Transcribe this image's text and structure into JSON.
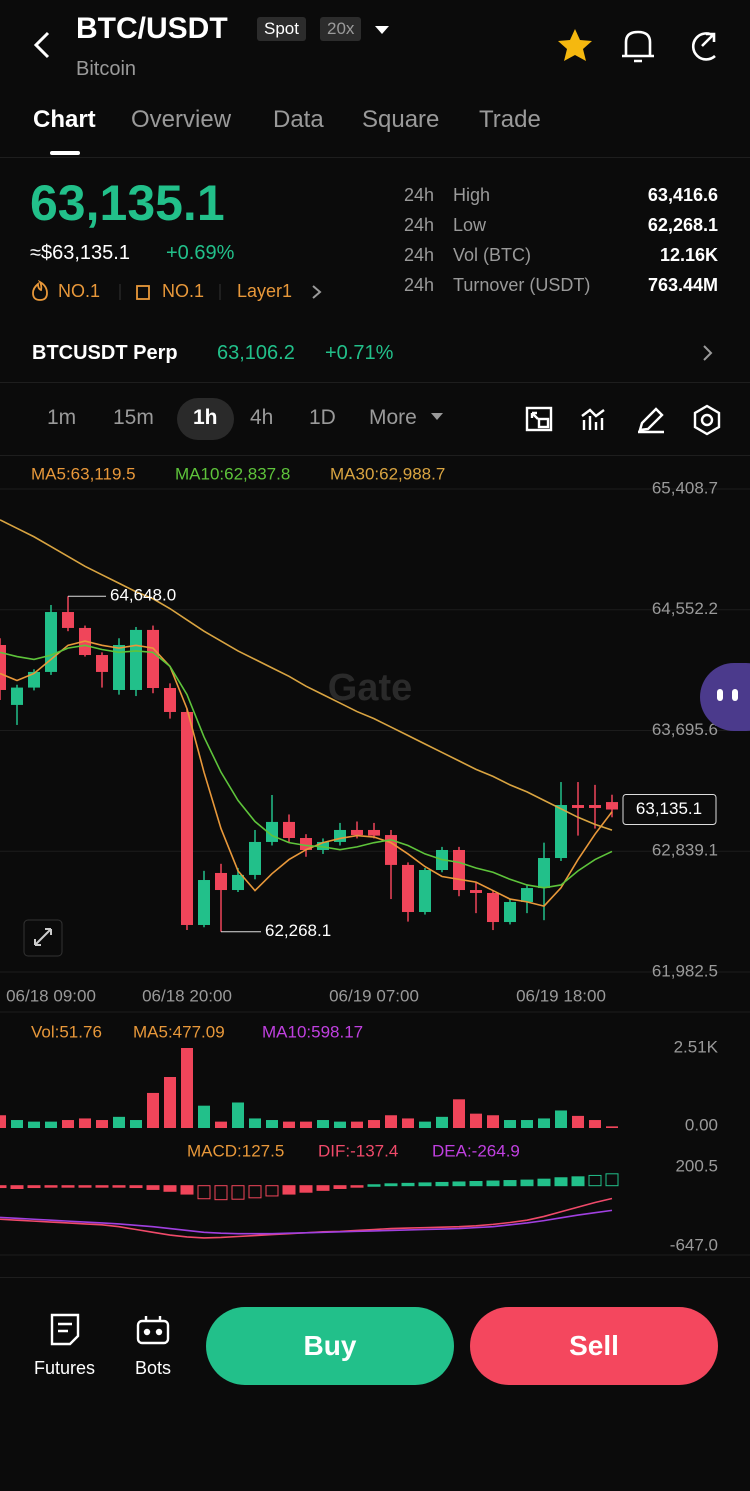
{
  "header": {
    "title": "BTC/USDT",
    "badges": [
      "Spot",
      "20x"
    ],
    "subtitle": "Bitcoin"
  },
  "tabs": [
    "Chart",
    "Overview",
    "Data",
    "Square",
    "Trade"
  ],
  "price": {
    "last": "63,135.1",
    "usd": "≈$63,135.1",
    "change": "+0.69%",
    "tags": [
      "NO.1",
      "NO.1",
      "Layer1"
    ]
  },
  "stats": [
    [
      "24h",
      "High",
      "63,416.6"
    ],
    [
      "24h",
      "Low",
      "62,268.1"
    ],
    [
      "24h",
      "Vol (BTC)",
      "12.16K"
    ],
    [
      "24h",
      "Turnover (USDT)",
      "763.44M"
    ]
  ],
  "perp": {
    "name": "BTCUSDT Perp",
    "price": "63,106.2",
    "change": "+0.71%"
  },
  "intervals": [
    "1m",
    "15m",
    "1h",
    "4h",
    "1D",
    "More"
  ],
  "watermark": "Gate",
  "chart_data": {
    "type": "candlestick",
    "legend": [
      "MA5:63,119.5",
      "MA10:62,837.8",
      "MA30:62,988.7"
    ],
    "ylim": [
      61982.5,
      65408.7
    ],
    "yticks": [
      {
        "value": 65408.7,
        "label": "65,408.7"
      },
      {
        "value": 64552.2,
        "label": "64,552.2"
      },
      {
        "value": 63695.6,
        "label": "63,695.6"
      },
      {
        "value": 62839.1,
        "label": "62,839.1"
      },
      {
        "value": 61982.5,
        "label": "61,982.5"
      }
    ],
    "categories": [
      null,
      null,
      null,
      "06/18 09:00",
      null,
      null,
      null,
      null,
      null,
      null,
      null,
      "06/18 20:00",
      null,
      null,
      null,
      null,
      null,
      null,
      null,
      null,
      null,
      null,
      "06/19 07:00",
      null,
      null,
      null,
      null,
      null,
      null,
      null,
      null,
      null,
      null,
      "06/19 18:00",
      null,
      null,
      null
    ],
    "open": [
      64302,
      63877,
      64000,
      64111,
      64536,
      64423,
      64231,
      63983,
      63983,
      64409,
      63997,
      63827,
      62316,
      62685,
      62564,
      62671,
      62905,
      63047,
      62933,
      62848,
      62905,
      62990,
      62990,
      62954,
      62742,
      62408,
      62706,
      62848,
      62564,
      62543,
      62337,
      62479,
      62578,
      62791,
      63167,
      63167,
      63188
    ],
    "high": [
      64350,
      64020,
      64130,
      64586,
      64648,
      64440,
      64250,
      64350,
      64430,
      64440,
      64030,
      63850,
      62700,
      62750,
      62720,
      62990,
      63238,
      63100,
      62960,
      62930,
      63040,
      63050,
      63040,
      62990,
      62760,
      62720,
      62870,
      62870,
      62620,
      62560,
      62500,
      62600,
      62900,
      63330,
      63330,
      63310,
      63240
    ],
    "low": [
      63912,
      63735,
      63980,
      64090,
      64400,
      64220,
      64000,
      63950,
      63940,
      63960,
      63780,
      62280,
      62300,
      62268.1,
      62550,
      62640,
      62880,
      62900,
      62800,
      62820,
      62880,
      62930,
      62930,
      62500,
      62340,
      62390,
      62690,
      62520,
      62400,
      62280,
      62320,
      62400,
      62350,
      62770,
      62950,
      63000,
      63080
    ],
    "close": [
      63983,
      64000,
      64111,
      64536,
      64423,
      64231,
      64111,
      64302,
      64409,
      63997,
      63827,
      62316,
      62635,
      62564,
      62671,
      62905,
      63047,
      62933,
      62848,
      62905,
      62990,
      62954,
      62950,
      62742,
      62408,
      62706,
      62848,
      62564,
      62543,
      62337,
      62479,
      62578,
      62791,
      63167,
      63146,
      63146,
      63135.1
    ],
    "series": [
      {
        "name": "MA5",
        "color": "#e8983a",
        "values": [
          64100,
          64050,
          64100,
          64200,
          64300,
          64330,
          64300,
          64280,
          64300,
          64280,
          64150,
          63850,
          63400,
          63000,
          62700,
          62560,
          62680,
          62780,
          62850,
          62900,
          62930,
          62950,
          62940,
          62900,
          62820,
          62730,
          62660,
          62640,
          62620,
          62560,
          62500,
          62480,
          62450,
          62580,
          62780,
          62960,
          63119.5
        ]
      },
      {
        "name": "MA10",
        "color": "#5ec43b",
        "values": [
          64250,
          64220,
          64200,
          64230,
          64280,
          64300,
          64270,
          64250,
          64260,
          64250,
          64150,
          63950,
          63650,
          63400,
          63200,
          63050,
          62950,
          62900,
          62880,
          62870,
          62850,
          62870,
          62900,
          62920,
          62880,
          62820,
          62780,
          62760,
          62720,
          62690,
          62640,
          62600,
          62580,
          62600,
          62700,
          62780,
          62837.8
        ]
      },
      {
        "name": "MA30",
        "color": "#d9a441",
        "values": [
          65190,
          65130,
          65070,
          65000,
          64930,
          64860,
          64800,
          64740,
          64680,
          64630,
          64560,
          64480,
          64400,
          64330,
          64260,
          64200,
          64140,
          64080,
          64010,
          63950,
          63890,
          63830,
          63780,
          63720,
          63660,
          63600,
          63540,
          63480,
          63420,
          63370,
          63310,
          63260,
          63200,
          63140,
          63080,
          63030,
          62988.7
        ]
      }
    ],
    "annotations": [
      {
        "label": "64,648.0",
        "value": 64648
      },
      {
        "label": "62,268.1",
        "value": 62268.1
      },
      {
        "label": "63,135.1",
        "value": 63135.1
      }
    ],
    "up_color": "#22c08a",
    "down_color": "#f0455a"
  },
  "volume": {
    "legend": [
      "Vol:51.76",
      "MA5:477.09",
      "MA10:598.17"
    ],
    "ylim": [
      0,
      2510
    ],
    "yticks": [
      {
        "value": 2510,
        "label": "2.51K"
      },
      {
        "value": 0,
        "label": "0.00"
      }
    ],
    "values": [
      400,
      250,
      200,
      200,
      250,
      300,
      250,
      350,
      250,
      1100,
      1600,
      2510,
      700,
      200,
      800,
      300,
      250,
      200,
      200,
      250,
      200,
      200,
      250,
      400,
      300,
      200,
      350,
      900,
      450,
      400,
      250,
      250,
      300,
      550,
      380,
      250,
      51.76
    ]
  },
  "macd": {
    "legend": [
      "MACD:127.5",
      "DIF:-137.4",
      "DEA:-264.9"
    ],
    "ylim": [
      -647,
      200.5
    ],
    "yticks": [
      200.5,
      {
        "value": -647,
        "label": "-647.0"
      }
    ],
    "hist": [
      -20,
      -30,
      -20,
      -10,
      -5,
      -5,
      -10,
      -15,
      -20,
      -40,
      -60,
      -90,
      -140,
      -150,
      -145,
      -130,
      -110,
      -90,
      -70,
      -50,
      -30,
      -10,
      10,
      20,
      25,
      30,
      35,
      40,
      45,
      50,
      55,
      60,
      70,
      85,
      95,
      110,
      127.5
    ],
    "dif": [
      -360,
      -370,
      -380,
      -390,
      -400,
      -410,
      -420,
      -440,
      -470,
      -500,
      -530,
      -550,
      -560,
      -555,
      -545,
      -535,
      -525,
      -515,
      -505,
      -495,
      -490,
      -480,
      -470,
      -460,
      -455,
      -450,
      -445,
      -440,
      -430,
      -415,
      -395,
      -370,
      -330,
      -280,
      -230,
      -180,
      -137.4
    ],
    "dea": [
      -340,
      -350,
      -360,
      -370,
      -380,
      -390,
      -400,
      -410,
      -425,
      -440,
      -460,
      -480,
      -500,
      -510,
      -515,
      -515,
      -515,
      -510,
      -505,
      -500,
      -495,
      -490,
      -485,
      -480,
      -475,
      -470,
      -465,
      -460,
      -450,
      -440,
      -420,
      -400,
      -375,
      -345,
      -315,
      -290,
      -264.9
    ]
  },
  "bottom": {
    "nav": [
      "Futures",
      "Bots"
    ],
    "buy": "Buy",
    "sell": "Sell"
  }
}
